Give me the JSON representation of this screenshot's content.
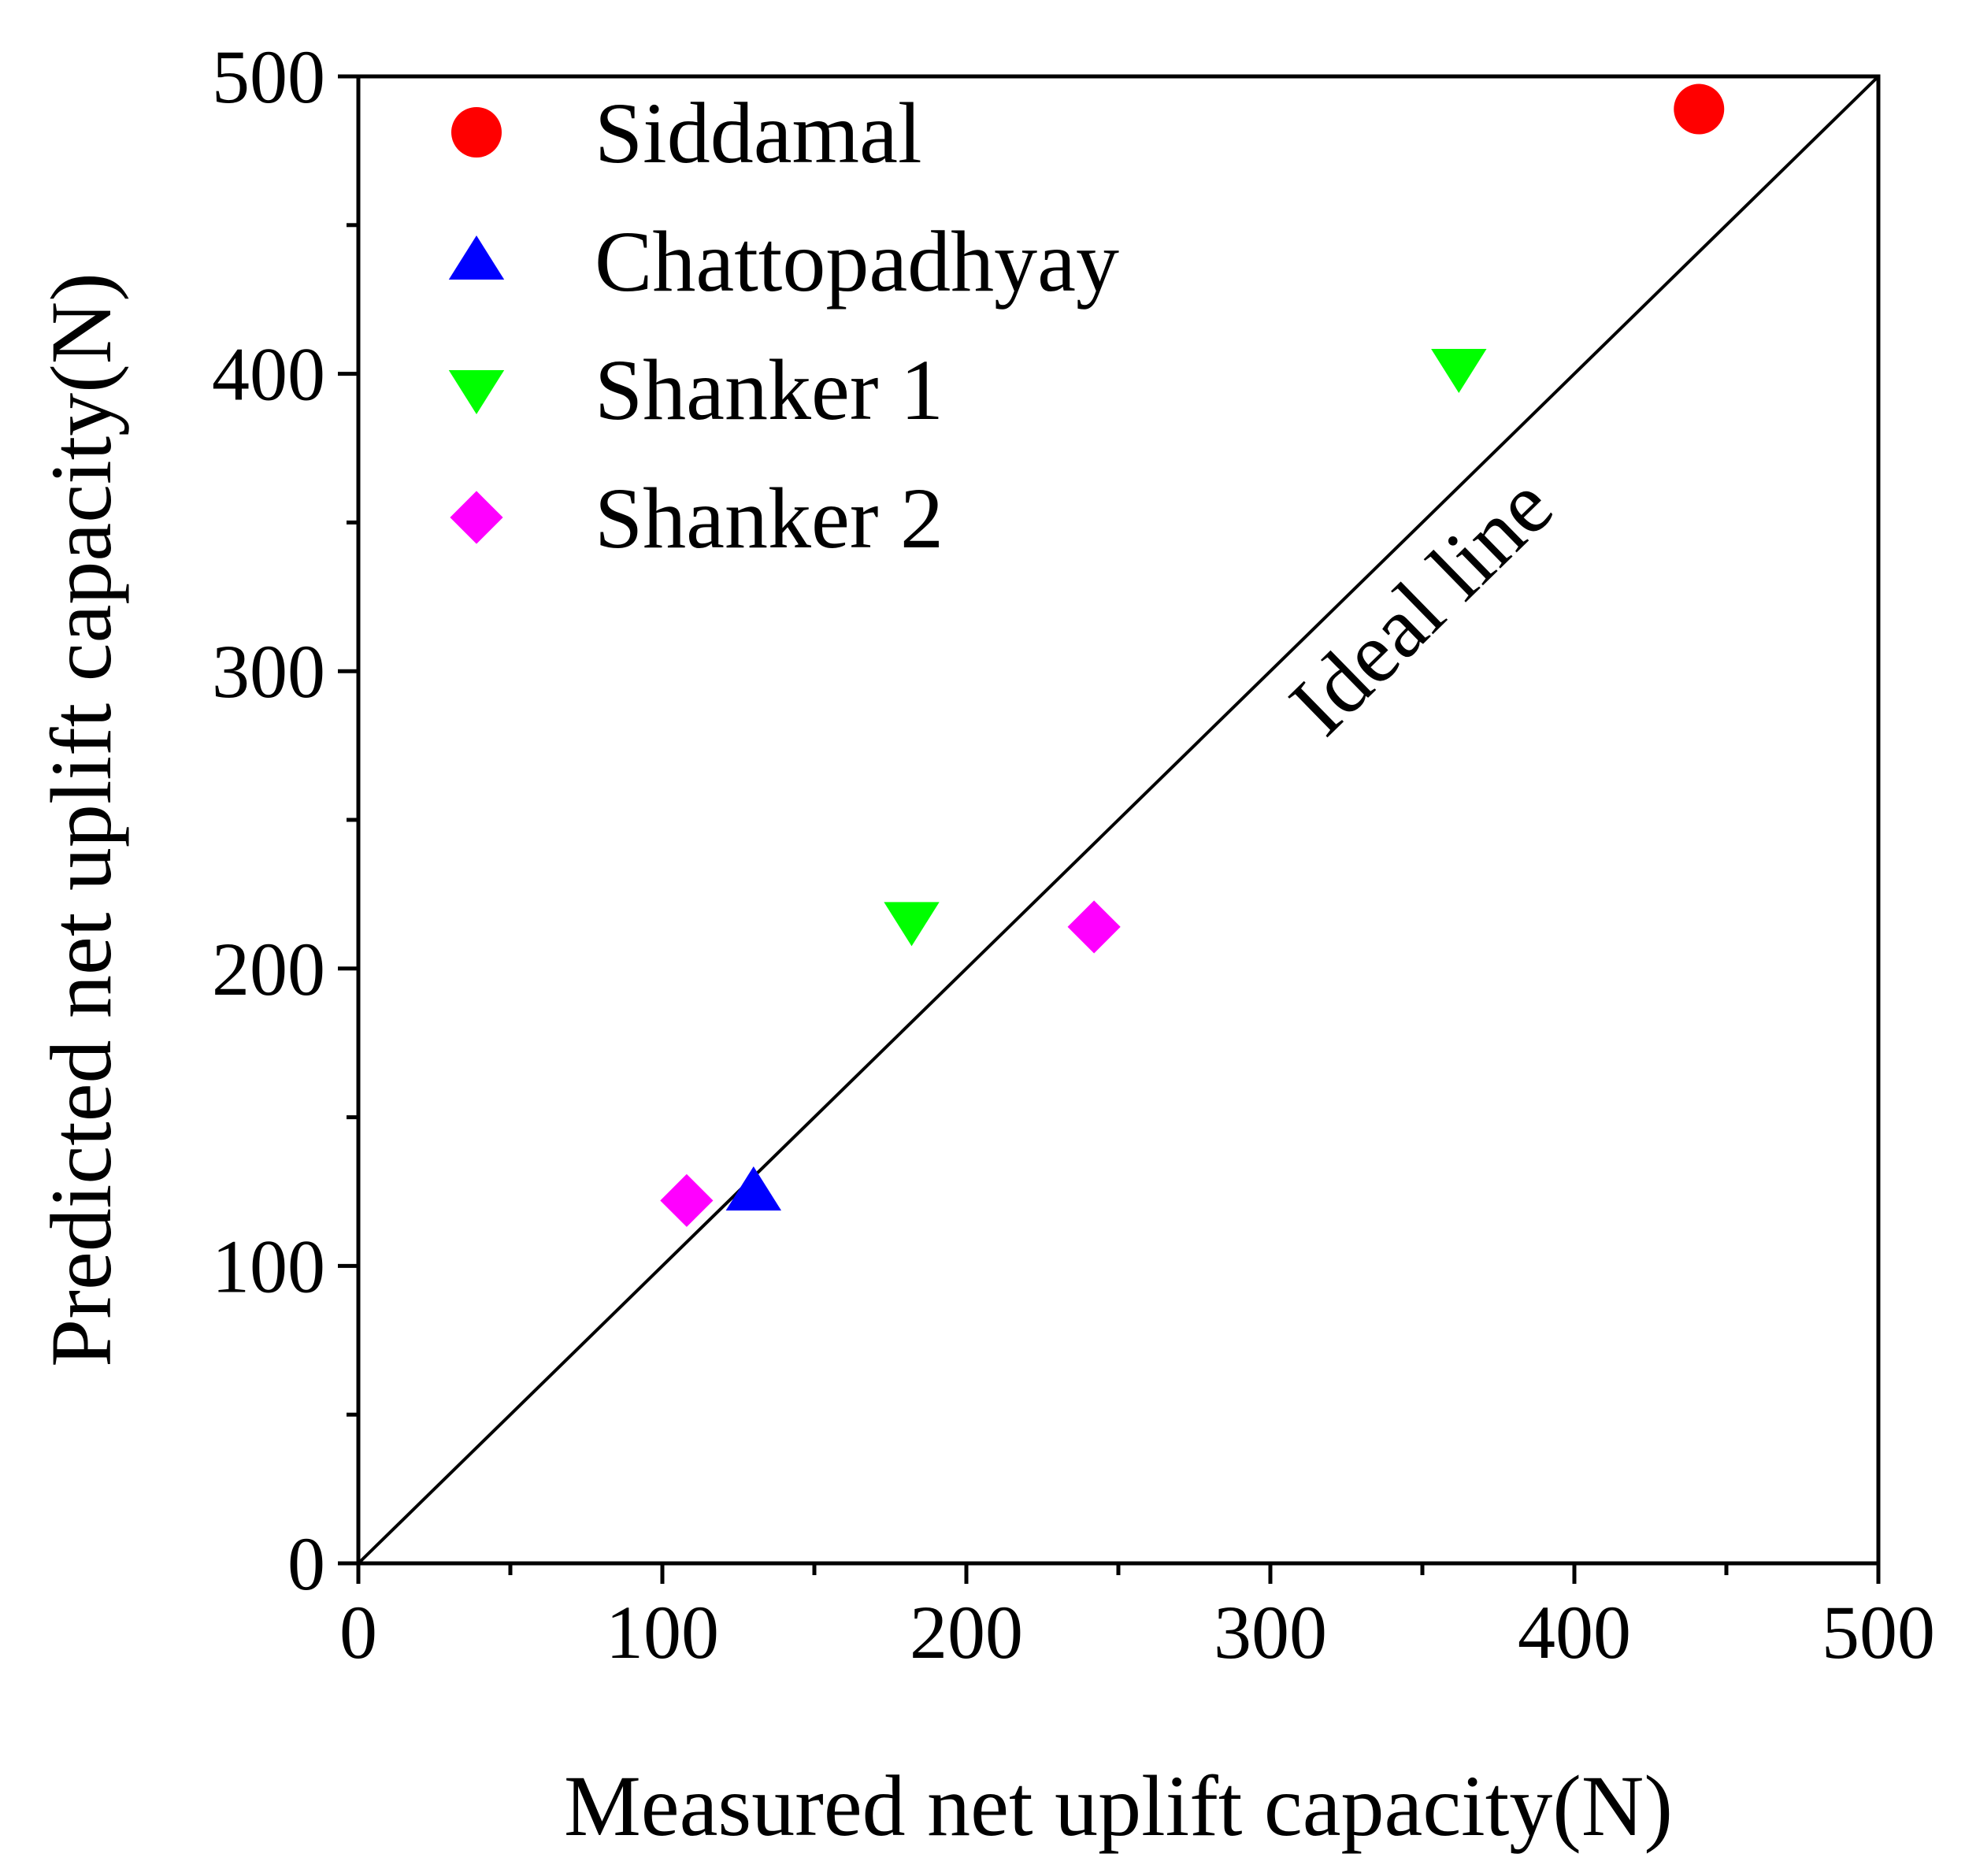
{
  "chart_data": {
    "type": "scatter",
    "xlabel": "Measured net uplift capacity(N)",
    "ylabel": "Predicted net uplift capacity(N)",
    "xlim": [
      0,
      500
    ],
    "ylim": [
      0,
      500
    ],
    "xticks": [
      0,
      100,
      200,
      300,
      400,
      500
    ],
    "yticks": [
      0,
      100,
      200,
      300,
      400,
      500
    ],
    "grid": false,
    "legend_position": "top-left",
    "series": [
      {
        "name": "Siddamal",
        "marker": "circle",
        "color": "#ff0000",
        "points": [
          {
            "x": 441,
            "y": 489
          }
        ]
      },
      {
        "name": "Chattopadhyay",
        "marker": "triangle-up",
        "color": "#0000ff",
        "points": [
          {
            "x": 130,
            "y": 125
          }
        ]
      },
      {
        "name": "Shanker 1",
        "marker": "triangle-down",
        "color": "#00ff00",
        "points": [
          {
            "x": 182,
            "y": 216
          },
          {
            "x": 362,
            "y": 402
          }
        ]
      },
      {
        "name": "Shanker 2",
        "marker": "diamond",
        "color": "#ff00ff",
        "points": [
          {
            "x": 108,
            "y": 122
          },
          {
            "x": 242,
            "y": 214
          }
        ]
      }
    ],
    "reference_line": {
      "label": "Ideal line",
      "from": [
        0,
        0
      ],
      "to": [
        500,
        500
      ]
    }
  }
}
